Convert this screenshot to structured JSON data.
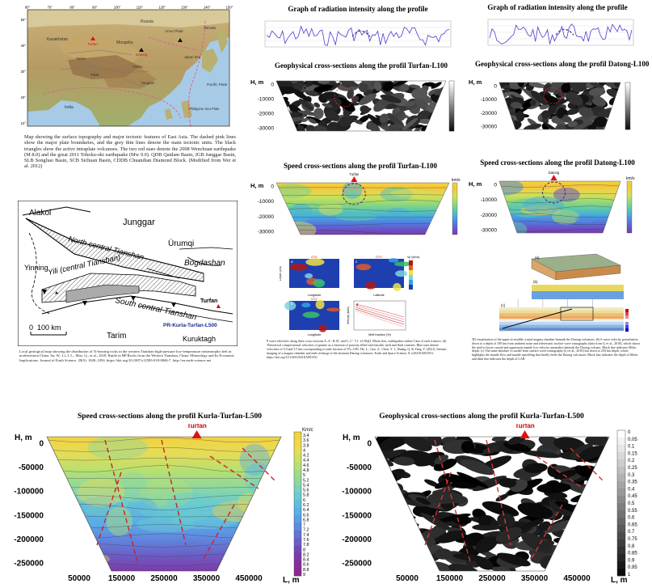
{
  "map_caption": "Map showing the surface topography and major tectonic features of East Asia. The dashed pink lines show the major plate boundaries, and the grey thin lines denote the main tectonic units. The black triangles show the active intraplate volcanoes. The two red stars denote the 2008 Wenchuan earthquake (M 8.0) and the great 2011 Tohoku-oki earthquake (Mw 9.0). QDB Qaidam Basin, JGB Junggar Basin, SLB Songliao Basin, SCB Sichuan Basin, CDDB Chuandian Diamond Block. (Modified from Wei et al. 2012)",
  "map_lon_ticks": [
    "60°",
    "70°",
    "80°",
    "90°",
    "100°",
    "110°",
    "120°",
    "130°",
    "140°",
    "150°"
  ],
  "map_lat_ticks": [
    "50°",
    "40°",
    "30°",
    "20°",
    "10°"
  ],
  "map_labels": [
    "Russia",
    "Kazakhstan",
    "Mongolia",
    "Amur Plate",
    "Okhotsk Plate",
    "Tarim",
    "Ordos",
    "Tibet",
    "Yangtze",
    "Japan Sea",
    "Pacific Plate",
    "India",
    "Philippine Sea Plate",
    "Hi-Arc"
  ],
  "geo_map": {
    "labels": {
      "alakol": "Alakol",
      "junggar": "Junggar",
      "nct": "North central Tianshan",
      "urumqi": "Ürumqi",
      "bogdashan": "Bogdashan",
      "yinning": "Yinning",
      "yili": "Yili (central Tianshan)",
      "turfan": "Turfan",
      "sct": "South central Tianshan",
      "profile": "PR-Kurla-Turfan-L500",
      "tarim": "Tarim",
      "kuruktagh": "Kuruktagh"
    },
    "scale": "0  100 km"
  },
  "geo_caption": "Local geological map showing the distribution of Ti-bearing rocks in the western Tianshan high-pressure low-temperature metamorphic belt in northwestern China. Su, W., Li, J. L., Mao, Q., et al., 2018. Rutile in HP Rocks from the Western Tianshan, China. Mineralogy and Its Economic Implications. Journal of Earth Science. 29(5): 1049–1056. https://doi.org/10.1007/s12583-018-0846-7. http://en.earth-science.net",
  "turfan_rad": {
    "title": "Graph of radiation intensity along the profile"
  },
  "datong_rad": {
    "title": "Graph of radiation intensity along the profile"
  },
  "turfan_geo": {
    "title": "Geophysical cross-sections along the profil Turfan-L100",
    "ylabel": "H, m",
    "yticks": [
      "0",
      "-10000",
      "-20000",
      "-30000"
    ]
  },
  "datong_geo": {
    "title": "Geophysical cross-sections along the profil Datong-L100",
    "ylabel": "H, m",
    "yticks": [
      "0",
      "-10000",
      "-20000",
      "-30000"
    ]
  },
  "turfan_speed": {
    "title": "Speed cross-sections along the profil Turfan-L100",
    "ylabel": "H, m",
    "yticks": [
      "0",
      "-10000",
      "-20000",
      "-30000"
    ],
    "unit": "km/s",
    "marker": "Turfan"
  },
  "datong_speed": {
    "title": "Speed cross-sections along the profil Datong-L100",
    "ylabel": "H, m",
    "yticks": [
      "0",
      "-10000",
      "-20000",
      "-30000"
    ],
    "unit": "km/s",
    "marker": "Datong"
  },
  "pwave_caption": "P wave velocities along three cross-sections A–A′, B–B′, and C–C′. T1: 12.5Kβ2. Black dots, earthquakes within 5 km of each transect. (d) Theoretical compressional velocities of granite as a function of porosity filled with basaltic melt and fluid contents. Blue stars denote velocities of 5.0 and 5.5 km corresponding to melt fraction of 5%–10%. He, L., Guo, Z., Chen, Y. J., Huang, Q. & Yang, Y. (2021). Seismic imaging of a magma chamber and melt recharge of the dormant Datong volcanoes. Earth and Space Science, 8, e2021EA001931. https://doi.org/10.1029/2021EA001931",
  "pwave_panels": {
    "a": "a",
    "b": "b",
    "c": "c",
    "d": "d",
    "dtv": "DTV",
    "longitude": "Longitude",
    "latitude": "Latitude",
    "depth": "Depth (km)",
    "vp": "Vp (km/s)",
    "velocity": "Velocity (km/s)",
    "melt": "Melt fraction (%)"
  },
  "datong3d_caption": "3D visualization of the upper-to-middle crustal magma chamber beneath the Datong volcanoes. (b) S wave velocity perturbation down to a depth of 100 km from ambient noise and teleseismic surface wave tomography (data from Li et al., 2018), which shows the mid-to-lower crustal and uppermost mantle low-velocity anomalies beneath the Datong volcano. Black line indicates Moho depth. (c) The same absolute vs model from surface wave tomography (Li et al., 2018) but down to 250 km depth, which highlights the mantle flow and mantle upwelling that finally feeds the Datong volcanoes. Black line indicates the depth of Moho and dash line indicates the depth of LAB",
  "kurla_speed": {
    "title": "Speed cross-sections along the profil Kurla-Turfan-L500",
    "marker": "Turfan",
    "ylabel": "H, m",
    "xlabel": "L, m",
    "yticks": [
      "0",
      "-50000",
      "-100000",
      "-150000",
      "-200000",
      "-250000"
    ],
    "xticks": [
      "50000",
      "150000",
      "250000",
      "350000",
      "450000"
    ],
    "unit": "Km/c",
    "scale": [
      "3.4",
      "3.6",
      "3.8",
      "4",
      "4.2",
      "4.4",
      "4.6",
      "4.8",
      "5",
      "5.2",
      "5.4",
      "5.6",
      "5.8",
      "6",
      "6.2",
      "6.4",
      "6.6",
      "6.8",
      "7",
      "7.2",
      "7.4",
      "7.6",
      "7.8",
      "8",
      "8.2",
      "8.4",
      "8.6",
      "8.8",
      "9"
    ]
  },
  "kurla_geo": {
    "title": "Geophysical cross-sections along the profil Kurla-Turfan-L500",
    "marker": "Turfan",
    "ylabel": "H, m",
    "xlabel": "L, m",
    "yticks": [
      "0",
      "-50000",
      "-100000",
      "-150000",
      "-200000",
      "-250000"
    ],
    "xticks": [
      "50000",
      "150000",
      "250000",
      "350000",
      "450000"
    ],
    "scale": [
      "0",
      "0.05",
      "0.1",
      "0.15",
      "0.2",
      "0.25",
      "0.3",
      "0.35",
      "0.4",
      "0.45",
      "0.5",
      "0.55",
      "0.6",
      "0.65",
      "0.7",
      "0.75",
      "0.8",
      "0.85",
      "0.9",
      "0.95",
      "1"
    ]
  }
}
